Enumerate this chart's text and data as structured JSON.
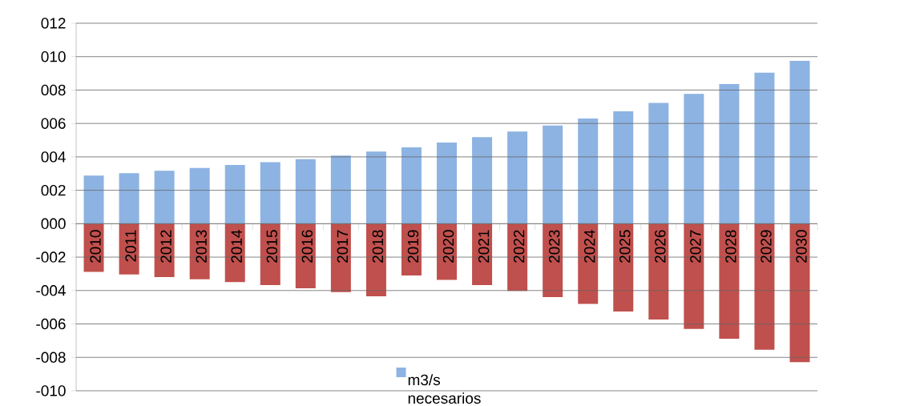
{
  "chart_data": {
    "type": "bar",
    "categories": [
      "2010",
      "2011",
      "2012",
      "2013",
      "2014",
      "2015",
      "2016",
      "2017",
      "2018",
      "2019",
      "2020",
      "2021",
      "2022",
      "2023",
      "2024",
      "2025",
      "2026",
      "2027",
      "2028",
      "2029",
      "2030"
    ],
    "series": [
      {
        "name": "m3/s necesarios",
        "color": "#8db3e2",
        "values": [
          2.88,
          3.03,
          3.17,
          3.33,
          3.51,
          3.68,
          3.86,
          4.08,
          4.32,
          4.57,
          4.86,
          5.18,
          5.52,
          5.88,
          6.29,
          6.73,
          7.23,
          7.77,
          8.36,
          9.04,
          9.75
        ]
      },
      {
        "color": "#c0504d",
        "values": [
          -2.88,
          -3.04,
          -3.19,
          -3.33,
          -3.5,
          -3.68,
          -3.86,
          -4.09,
          -4.34,
          -3.1,
          -3.36,
          -3.68,
          -4.02,
          -4.39,
          -4.8,
          -5.25,
          -5.73,
          -6.3,
          -6.89,
          -7.54,
          -8.29
        ]
      }
    ],
    "ylim": [
      -10,
      12
    ],
    "yticks": [
      {
        "value": -10,
        "label": "-010"
      },
      {
        "value": -8,
        "label": "-008"
      },
      {
        "value": -6,
        "label": "-006"
      },
      {
        "value": -4,
        "label": "-004"
      },
      {
        "value": -2,
        "label": "-002"
      },
      {
        "value": 0,
        "label": "000"
      },
      {
        "value": 2,
        "label": "002"
      },
      {
        "value": 4,
        "label": "004"
      },
      {
        "value": 6,
        "label": "006"
      },
      {
        "value": 8,
        "label": "008"
      },
      {
        "value": 10,
        "label": "010"
      },
      {
        "value": 12,
        "label": "012"
      }
    ],
    "grid": "y",
    "legend": "bottom",
    "stacked": true
  }
}
